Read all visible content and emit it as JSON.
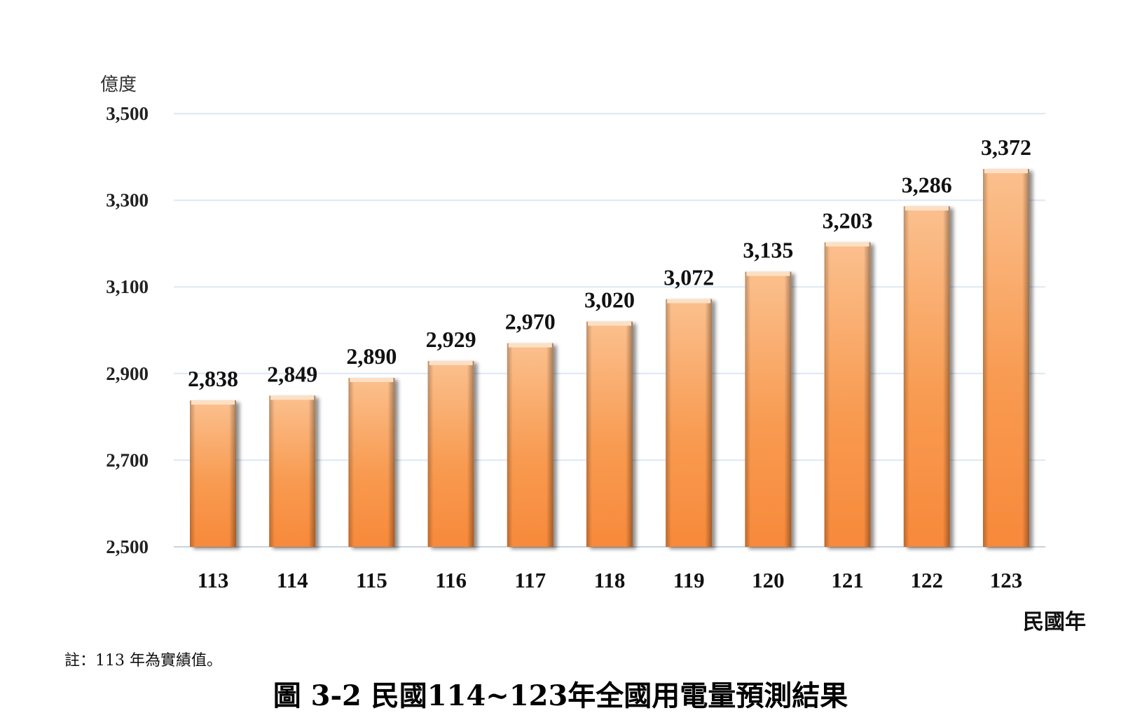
{
  "chart_data": {
    "type": "bar",
    "ylabel": "億度",
    "xlabel": "民國年",
    "ylim": [
      2500,
      3500
    ],
    "yticks": [
      "2,500",
      "2,700",
      "2,900",
      "3,100",
      "3,300",
      "3,500"
    ],
    "ytick_values": [
      2500,
      2700,
      2900,
      3100,
      3300,
      3500
    ],
    "categories": [
      "113",
      "114",
      "115",
      "116",
      "117",
      "118",
      "119",
      "120",
      "121",
      "122",
      "123"
    ],
    "values": [
      2838,
      2849,
      2890,
      2929,
      2970,
      3020,
      3072,
      3135,
      3203,
      3286,
      3372
    ],
    "value_labels": [
      "2,838",
      "2,849",
      "2,890",
      "2,929",
      "2,970",
      "3,020",
      "3,072",
      "3,135",
      "3,203",
      "3,286",
      "3,372"
    ],
    "grid": true,
    "bar_color": "#f7913f",
    "bar_color_light": "#fbc08e",
    "grid_color": "#dce8f5"
  },
  "note": "註：113 年為實績值。",
  "caption": "圖 3-2  民國114~123年全國用電量預測結果"
}
